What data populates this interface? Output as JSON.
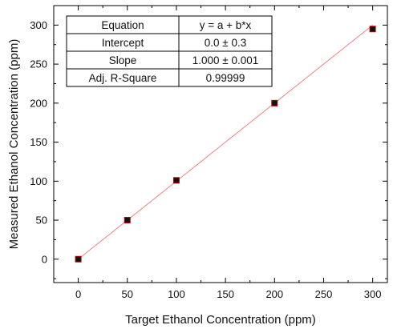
{
  "chart_data": {
    "type": "scatter",
    "xlabel": "Target Ethanol Concentration (ppm)",
    "ylabel": "Measured Ethanol Concentration (ppm)",
    "xlim": [
      -25,
      315
    ],
    "ylim": [
      -30,
      325
    ],
    "xticks": [
      0,
      50,
      100,
      150,
      200,
      250,
      300
    ],
    "yticks": [
      0,
      50,
      100,
      150,
      200,
      250,
      300
    ],
    "xtick_labels": [
      "0",
      "50",
      "100",
      "150",
      "200",
      "250",
      "300"
    ],
    "ytick_labels": [
      "0",
      "50",
      "100",
      "150",
      "200",
      "250",
      "300"
    ],
    "grid": false,
    "series": [
      {
        "x": [
          0,
          50,
          100,
          200,
          300
        ],
        "y": [
          0,
          50,
          101,
          200,
          295
        ],
        "marker": "square",
        "color": "#111111",
        "edge_color": "#c00000"
      }
    ],
    "fit_line": {
      "intercept": 0.0,
      "slope": 1.0,
      "color": "#f08080",
      "x_range": [
        0,
        300
      ]
    },
    "fit_table": [
      [
        "Equation",
        "y = a + b*x"
      ],
      [
        "Intercept",
        "0.0 ± 0.3"
      ],
      [
        "Slope",
        "1.000 ± 0.001"
      ],
      [
        "Adj. R-Square",
        "0.99999"
      ]
    ]
  }
}
